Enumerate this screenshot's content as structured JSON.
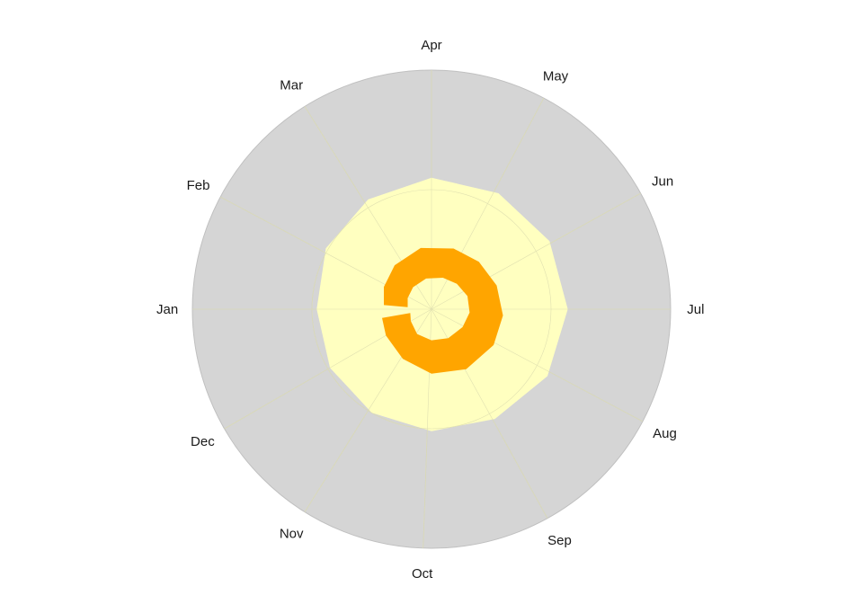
{
  "chart_data": {
    "type": "area",
    "subtype": "polar-radial-band",
    "months": [
      "Jan",
      "Feb",
      "Mar",
      "Apr",
      "May",
      "Jun",
      "Jul",
      "Aug",
      "Sep",
      "Oct",
      "Nov",
      "Dec"
    ],
    "month_angles_deg": [
      270,
      298,
      328,
      0,
      28,
      61,
      90,
      118,
      151,
      182,
      212,
      240
    ],
    "r_range": [
      0,
      100
    ],
    "grid": true,
    "colors": {
      "background_disc": "#d5d5d5",
      "outer_band": "#ffffc0",
      "inner_band": "#ffa500",
      "grid": "#c8c8c8"
    },
    "outer_band": {
      "angles_deg": [
        0,
        30,
        60,
        90,
        120,
        150,
        180,
        210,
        240,
        270,
        300,
        330
      ],
      "outer_r": [
        55,
        56,
        57,
        57,
        56,
        53,
        51,
        50,
        49,
        48,
        51,
        53
      ],
      "inner_r": [
        0,
        0,
        0,
        0,
        0,
        0,
        0,
        0,
        0,
        0,
        0,
        0
      ]
    },
    "inner_band": {
      "angles_deg": [
        275,
        295,
        320,
        350,
        20,
        45,
        70,
        95,
        120,
        150,
        180,
        210,
        240,
        260
      ],
      "outer_r": [
        20,
        22,
        24,
        26,
        27,
        28,
        29,
        30,
        30,
        29,
        27,
        24,
        22,
        21
      ],
      "inner_r": [
        10,
        11,
        12,
        13,
        14,
        15,
        16,
        16,
        15,
        14,
        13,
        12,
        10,
        9
      ]
    }
  }
}
